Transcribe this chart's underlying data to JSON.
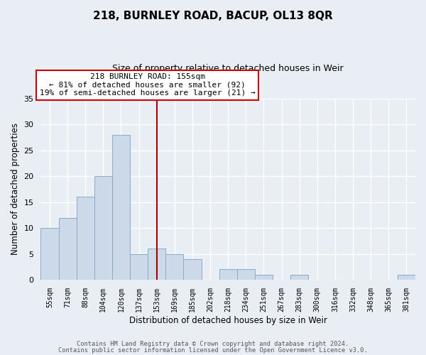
{
  "title": "218, BURNLEY ROAD, BACUP, OL13 8QR",
  "subtitle": "Size of property relative to detached houses in Weir",
  "xlabel": "Distribution of detached houses by size in Weir",
  "ylabel": "Number of detached properties",
  "footer_line1": "Contains HM Land Registry data © Crown copyright and database right 2024.",
  "footer_line2": "Contains public sector information licensed under the Open Government Licence v3.0.",
  "bar_labels": [
    "55sqm",
    "71sqm",
    "88sqm",
    "104sqm",
    "120sqm",
    "137sqm",
    "153sqm",
    "169sqm",
    "185sqm",
    "202sqm",
    "218sqm",
    "234sqm",
    "251sqm",
    "267sqm",
    "283sqm",
    "300sqm",
    "316sqm",
    "332sqm",
    "348sqm",
    "365sqm",
    "381sqm"
  ],
  "bar_values": [
    10,
    12,
    16,
    20,
    28,
    5,
    6,
    5,
    4,
    0,
    2,
    2,
    1,
    0,
    1,
    0,
    0,
    0,
    0,
    0,
    1
  ],
  "bar_color": "#ccd9e8",
  "bar_edge_color": "#8aaac8",
  "vline_x_idx": 6,
  "vline_color": "#aa0000",
  "annotation_title": "218 BURNLEY ROAD: 155sqm",
  "annotation_line1": "← 81% of detached houses are smaller (92)",
  "annotation_line2": "19% of semi-detached houses are larger (21) →",
  "annotation_box_color": "#ffffff",
  "annotation_box_edge": "#cc0000",
  "ylim": [
    0,
    35
  ],
  "yticks": [
    0,
    5,
    10,
    15,
    20,
    25,
    30,
    35
  ],
  "background_color": "#e8eef4"
}
